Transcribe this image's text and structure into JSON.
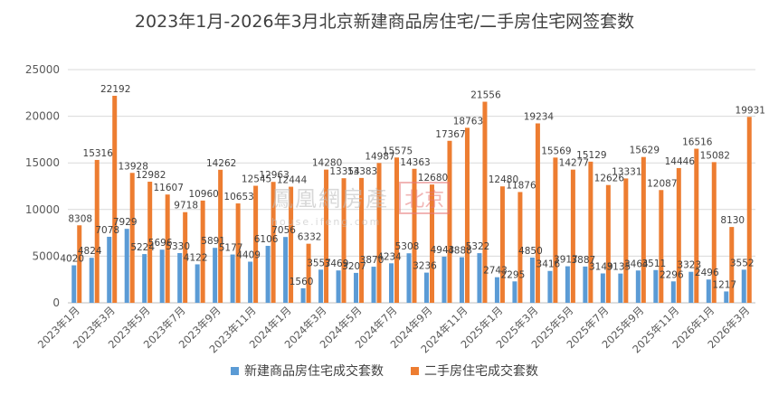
{
  "chart_data": {
    "type": "bar",
    "title": "2023年1月-2026年3月北京新建商品房住宅/二手房住宅网签套数",
    "ylim": [
      0,
      25000
    ],
    "yticks": [
      0,
      5000,
      10000,
      15000,
      20000,
      25000
    ],
    "grid": true,
    "legend_position": "bottom",
    "xtick_labels": [
      "2023年1月",
      "2023年3月",
      "2023年5月",
      "2023年7月",
      "2023年9月",
      "2023年11月",
      "2024年1月",
      "2024年3月",
      "2024年5月",
      "2024年7月",
      "2024年9月",
      "2024年11月",
      "2025年1月",
      "2025年3月",
      "2025年5月",
      "2025年7月",
      "2025年9月",
      "2025年11月",
      "2026年1月",
      "2026年3月"
    ],
    "categories": [
      "2023年1月",
      "2023年2月",
      "2023年3月",
      "2023年4月",
      "2023年5月",
      "2023年6月",
      "2023年7月",
      "2023年8月",
      "2023年9月",
      "2023年10月",
      "2023年11月",
      "2023年12月",
      "2024年1月",
      "2024年2月",
      "2024年3月",
      "2024年4月",
      "2024年5月",
      "2024年6月",
      "2024年7月",
      "2024年8月",
      "2024年9月",
      "2024年10月",
      "2024年11月",
      "2024年12月",
      "2025年1月",
      "2025年2月",
      "2025年3月",
      "2025年4月",
      "2025年5月",
      "2025年6月",
      "2025年7月",
      "2025年8月",
      "2025年9月",
      "2025年10月",
      "2025年11月",
      "2025年12月",
      "2026年1月",
      "2026年2月",
      "2026年3月"
    ],
    "series": [
      {
        "name": "新建商品房住宅成交套数",
        "color": "#5B9BD5",
        "values": [
          4020,
          4824,
          7078,
          7929,
          5224,
          5696,
          5330,
          4122,
          5891,
          5177,
          4409,
          6106,
          7056,
          1560,
          3557,
          3469,
          3207,
          3870,
          4234,
          5308,
          3236,
          4943,
          4888,
          5322,
          2743,
          2295,
          4850,
          3416,
          3917,
          3887,
          3149,
          3135,
          3464,
          3511,
          2296,
          3323,
          2496,
          1217,
          3552
        ]
      },
      {
        "name": "二手房住宅成交套数",
        "color": "#ED7D31",
        "values": [
          8308,
          15316,
          22192,
          13928,
          12982,
          11607,
          9718,
          10960,
          14262,
          10653,
          12545,
          12963,
          12444,
          6332,
          14280,
          13354,
          13383,
          14987,
          15575,
          14363,
          12680,
          17367,
          18763,
          21556,
          12480,
          11876,
          19234,
          15569,
          14277,
          15129,
          12626,
          13331,
          15629,
          12087,
          14446,
          16516,
          15082,
          8130,
          19931
        ]
      }
    ]
  },
  "watermark": {
    "brand": "鳳凰網房產",
    "box": "北京",
    "url": "house.ifeng.com"
  }
}
